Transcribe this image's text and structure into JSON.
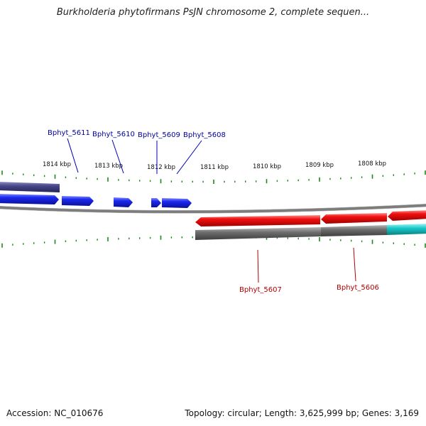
{
  "title": "Burkholderia phytofirmans PsJN chromosome 2, complete sequen...",
  "footer": {
    "accession": "Accession: NC_010676",
    "summary": "Topology: circular; Length: 3,625,999 bp; Genes: 3,169"
  },
  "ruler": {
    "labels": [
      "1814 kbp",
      "1813 kbp",
      "1812 kbp",
      "1811 kbp",
      "1810 kbp",
      "1809 kbp",
      "1808 kbp"
    ]
  },
  "genes": {
    "forward": [
      "Bphyt_5611",
      "Bphyt_5610",
      "Bphyt_5609",
      "Bphyt_5608"
    ],
    "reverse": [
      "Bphyt_5607",
      "Bphyt_5606"
    ]
  },
  "colors": {
    "forward_cds": "#0a14e6",
    "forward_gene": "#3c3c82",
    "reverse_cds": "#ee0000",
    "reverse_gene": "#6a6a6a",
    "reverse_other": "#14c8c8",
    "forward_label": "#0000a0",
    "reverse_label": "#b00000",
    "tick": "#1a8a1a",
    "backbone": "#8a8a8a"
  }
}
